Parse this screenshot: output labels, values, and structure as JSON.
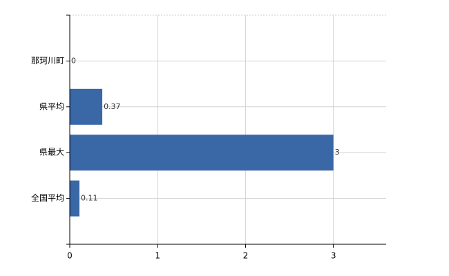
{
  "chart_data": {
    "type": "hbar",
    "categories": [
      "那珂川町",
      "県平均",
      "県最大",
      "全国平均"
    ],
    "values": [
      0,
      0.37,
      3,
      0.11
    ],
    "color": "#3a67a6",
    "xlim": [
      0,
      3.6
    ],
    "xticks": [
      0,
      1,
      2,
      3
    ],
    "grid": true
  }
}
